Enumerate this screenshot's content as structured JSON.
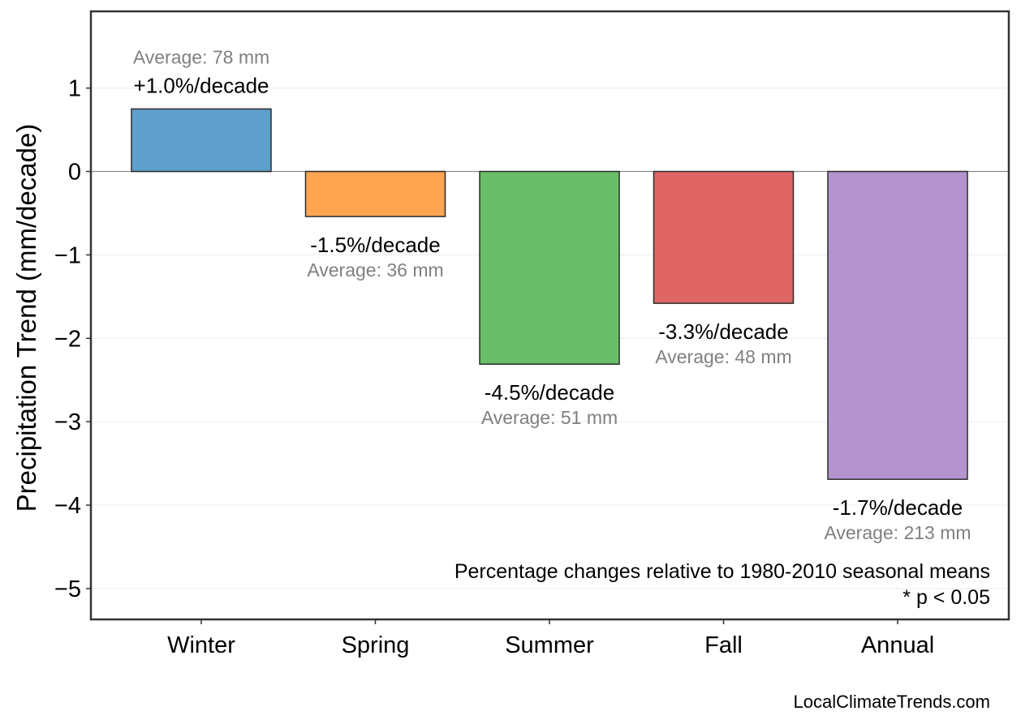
{
  "chart_data": {
    "type": "bar",
    "ylabel": "Precipitation Trend (mm/decade)",
    "ylim": [
      -5.37,
      1.92
    ],
    "yticks": [
      1,
      0,
      -1,
      -2,
      -3,
      -4,
      -5
    ],
    "ytick_labels": [
      "1",
      "0",
      "−1",
      "−2",
      "−3",
      "−4",
      "−5"
    ],
    "categories": [
      "Winter",
      "Spring",
      "Summer",
      "Fall",
      "Annual"
    ],
    "values": [
      0.75,
      -0.54,
      -2.31,
      -1.58,
      -3.69
    ],
    "colors": [
      "#5f9fcc",
      "#ffa552",
      "#6abe6a",
      "#e06666",
      "#b394cf"
    ],
    "trend_labels": [
      "+1.0%/decade",
      "-1.5%/decade",
      "-4.5%/decade",
      "-3.3%/decade",
      "-1.7%/decade"
    ],
    "average_labels": [
      "Average: 78 mm",
      "Average: 36 mm",
      "Average: 51 mm",
      "Average: 48 mm",
      "Average: 213 mm"
    ],
    "grid": true,
    "annotations": [
      "Percentage changes relative to 1980-2010 seasonal means",
      "* p < 0.05"
    ]
  },
  "credit": "LocalClimateTrends.com"
}
